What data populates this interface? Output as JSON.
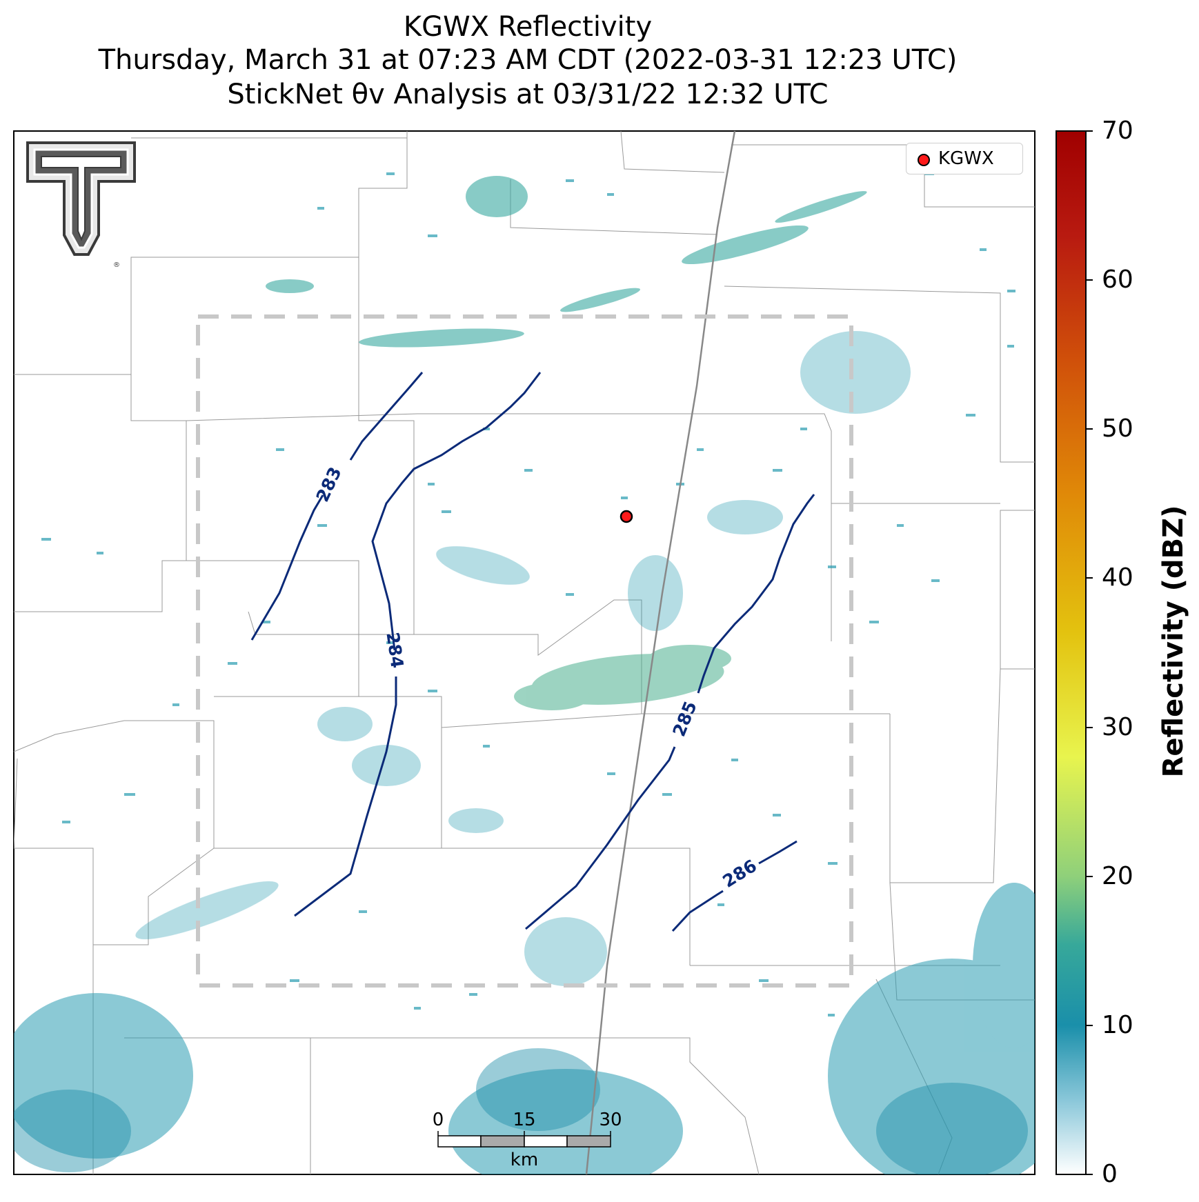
{
  "title": {
    "line1": "KGWX Reflectivity",
    "line2": "Thursday, March 31 at 07:23 AM CDT (2022-03-31 12:23 UTC)",
    "line3": "StickNet θv Analysis at 03/31/22 12:32 UTC"
  },
  "legend": {
    "label": "KGWX",
    "marker_color": "#ff1a1a"
  },
  "colorbar": {
    "label": "Reflectivity (dBZ)",
    "ticks": [
      "0",
      "10",
      "20",
      "30",
      "40",
      "50",
      "60",
      "70"
    ],
    "range": [
      0,
      70
    ],
    "colors": [
      "#ffffff",
      "#1a8faa",
      "#2fa09a",
      "#4fb48a",
      "#9fd870",
      "#e6f54a",
      "#e0c010",
      "#e08a08",
      "#d04a0a",
      "#b01010",
      "#a00000"
    ]
  },
  "contours": [
    {
      "label": "283",
      "value": 283
    },
    {
      "label": "284",
      "value": 284
    },
    {
      "label": "285",
      "value": 285
    },
    {
      "label": "286",
      "value": 286
    }
  ],
  "scalebar": {
    "ticks": [
      "0",
      "15",
      "30"
    ],
    "unit": "km"
  },
  "logo": {
    "name": "Texas Tech Double T"
  }
}
